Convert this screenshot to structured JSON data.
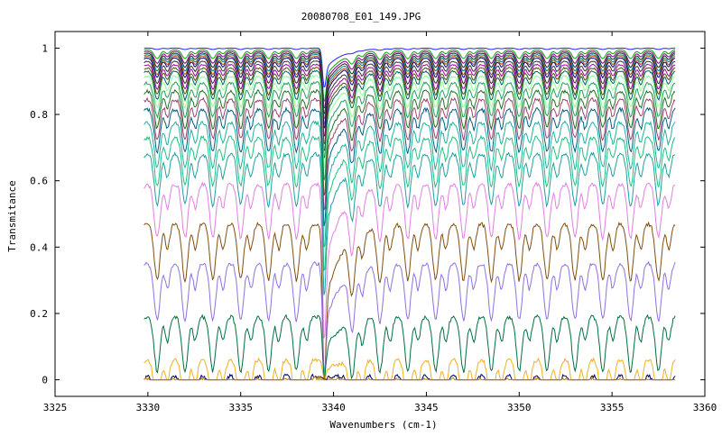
{
  "chart_data": {
    "type": "line",
    "title": "20080708_E01_149.JPG",
    "xlabel": "Wavenumbers (cm-1)",
    "ylabel": "Transmitance",
    "xlim": [
      3325,
      3360
    ],
    "ylim": [
      -0.05,
      1.05
    ],
    "xticks": [
      3325,
      3330,
      3335,
      3340,
      3345,
      3350,
      3355,
      3360
    ],
    "yticks": [
      0,
      0.2,
      0.4,
      0.6,
      0.8,
      1
    ],
    "ytick_labels": [
      "0",
      "0.2",
      "0.4",
      "0.6",
      "0.8",
      "1"
    ],
    "grid": false,
    "legend": "none",
    "x_range_of_data": [
      3329.8,
      3358.4
    ],
    "strong_dip_center": 3339.5,
    "line_spacing_cm1": 1.5,
    "series": [
      {
        "baseline": 1.0,
        "color": "#2020ff"
      },
      {
        "baseline": 0.995,
        "color": "#00aa00"
      },
      {
        "baseline": 0.99,
        "color": "#800080"
      },
      {
        "baseline": 0.985,
        "color": "#202020"
      },
      {
        "baseline": 0.98,
        "color": "#008080"
      },
      {
        "baseline": 0.975,
        "color": "#b05000"
      },
      {
        "baseline": 0.97,
        "color": "#000080"
      },
      {
        "baseline": 0.96,
        "color": "#303030"
      },
      {
        "baseline": 0.95,
        "color": "#a000a0"
      },
      {
        "baseline": 0.94,
        "color": "#505000"
      },
      {
        "baseline": 0.93,
        "color": "#006060"
      },
      {
        "baseline": 0.915,
        "color": "#90ff90"
      },
      {
        "baseline": 0.895,
        "color": "#20a060"
      },
      {
        "baseline": 0.87,
        "color": "#207020"
      },
      {
        "baseline": 0.845,
        "color": "#a04070"
      },
      {
        "baseline": 0.815,
        "color": "#006080"
      },
      {
        "baseline": 0.775,
        "color": "#20b0a0"
      },
      {
        "baseline": 0.73,
        "color": "#20c080"
      },
      {
        "baseline": 0.68,
        "color": "#20a0a0"
      },
      {
        "baseline": 0.59,
        "color": "#e080e0"
      },
      {
        "baseline": 0.47,
        "color": "#805010"
      },
      {
        "baseline": 0.35,
        "color": "#9070e0"
      },
      {
        "baseline": 0.19,
        "color": "#007040"
      },
      {
        "baseline": 0.06,
        "color": "#f0b020"
      },
      {
        "baseline": 0.012,
        "color": "#000060"
      },
      {
        "baseline": 0.003,
        "color": "#c08000"
      }
    ]
  }
}
